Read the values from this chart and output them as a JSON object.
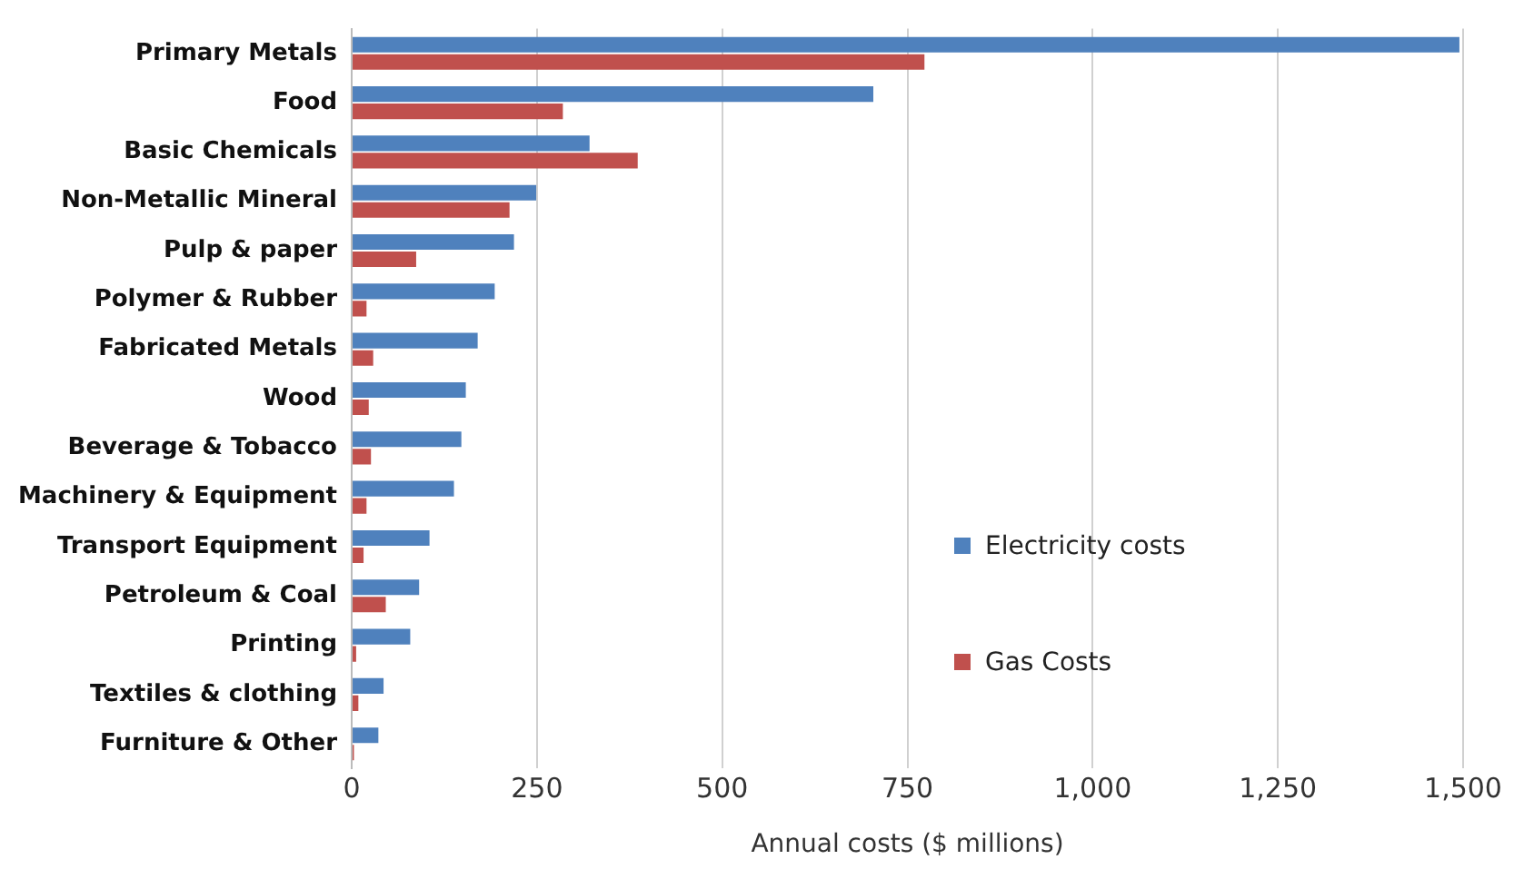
{
  "chart_data": {
    "type": "bar",
    "orientation": "horizontal",
    "categories": [
      "Primary Metals",
      "Food",
      "Basic Chemicals",
      "Non-Metallic Mineral",
      "Pulp & paper",
      "Polymer & Rubber",
      "Fabricated Metals",
      "Wood",
      "Beverage & Tobacco",
      "Machinery & Equipment",
      "Transport Equipment",
      "Petroleum & Coal",
      "Printing",
      "Textiles & clothing",
      "Furniture & Other"
    ],
    "series": [
      {
        "name": "Electricity costs",
        "color": "#4f81bd",
        "values": [
          1495,
          704,
          321,
          249,
          219,
          193,
          170,
          154,
          148,
          138,
          105,
          91,
          79,
          43,
          36
        ]
      },
      {
        "name": "Gas Costs",
        "color": "#c0504d",
        "values": [
          773,
          285,
          386,
          213,
          87,
          20,
          29,
          23,
          26,
          20,
          16,
          46,
          6,
          9,
          3
        ]
      }
    ],
    "xlabel": "Annual costs ($ millions)",
    "xlim": [
      0,
      1500
    ],
    "xticks": [
      0,
      250,
      500,
      750,
      {
        "value": 1000,
        "label": "1,000"
      },
      {
        "value": 1250,
        "label": "1,250"
      },
      {
        "value": 1500,
        "label": "1,500"
      }
    ],
    "grid": "x",
    "legend": "right"
  }
}
